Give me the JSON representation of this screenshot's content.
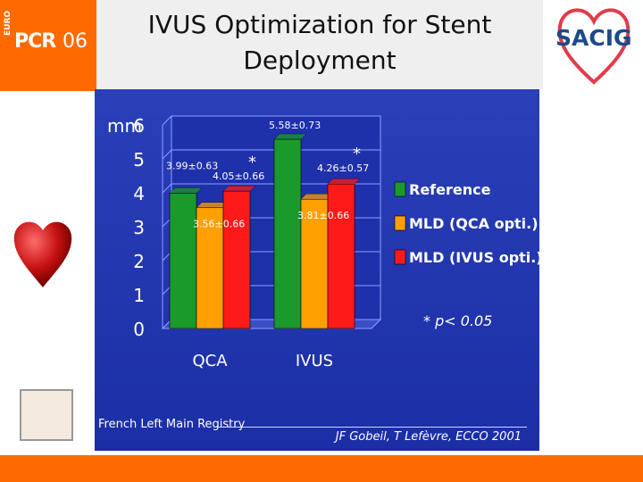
{
  "header": {
    "brand_euro": "EURO",
    "brand_pcr": "PCR",
    "brand_num": "06",
    "title": "IVUS Optimization for Stent Deployment",
    "sacig": "SACIG"
  },
  "colors": {
    "orange": "#ff6a00",
    "panel": "#2233b0",
    "reference": "#1a9a2a",
    "qca": "#ffa000",
    "ivus": "#ff1a1a"
  },
  "footer": {
    "registry": "French Left Main Registry",
    "authors": "JF Gobeil, T Lefèvre, ECCO 2001"
  },
  "chart_data": {
    "type": "bar",
    "title": "",
    "ylabel": "mm",
    "ylim": [
      0,
      6
    ],
    "yticks": [
      "0",
      "1",
      "2",
      "3",
      "4",
      "5",
      "6"
    ],
    "categories": [
      "QCA",
      "IVUS"
    ],
    "series": [
      {
        "name": "Reference",
        "color": "#1a9a2a",
        "values": [
          3.99,
          5.58
        ],
        "labels": [
          "3.99±0.63",
          "5.58±0.73"
        ]
      },
      {
        "name": "MLD (QCA opti.)",
        "color": "#ffa000",
        "values": [
          3.56,
          3.81
        ],
        "labels": [
          "3.56±0.66",
          "3.81±0.66"
        ]
      },
      {
        "name": "MLD (IVUS opti.)",
        "color": "#ff1a1a",
        "values": [
          4.05,
          4.26
        ],
        "labels": [
          "4.05±0.66",
          "4.26±0.57"
        ]
      }
    ],
    "annotation": "* p< 0.05",
    "star": "*",
    "legend_position": "right"
  }
}
